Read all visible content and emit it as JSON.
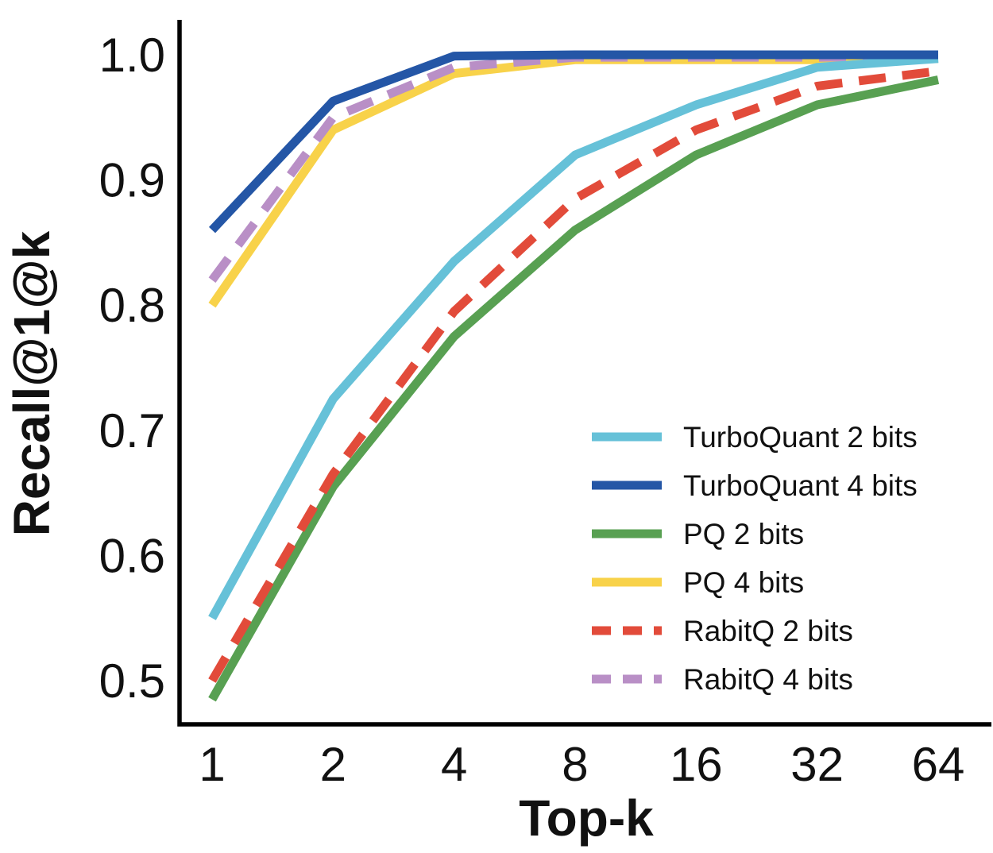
{
  "figure": {
    "kind": "line-chart-figure",
    "background": "#ffffff",
    "text_color": "#111111",
    "axis_color": "#000000"
  },
  "chart_data": {
    "type": "line",
    "title": "",
    "xlabel": "Top-k",
    "ylabel": "Recall@1@k",
    "x_scale": "log2",
    "x": [
      1,
      2,
      4,
      8,
      16,
      32,
      64
    ],
    "xtick_labels": [
      "1",
      "2",
      "4",
      "8",
      "16",
      "32",
      "64"
    ],
    "yticks": [
      0.5,
      0.6,
      0.7,
      0.8,
      0.9,
      1.0
    ],
    "ytick_labels": [
      "0.5",
      "0.6",
      "0.7",
      "0.8",
      "0.9",
      "1.0"
    ],
    "ylim": [
      0.465,
      1.028
    ],
    "xlim": [
      1,
      64
    ],
    "grid": false,
    "legend_position": "lower right",
    "series": [
      {
        "name": "TurboQuant 2 bits",
        "color": "#66c1d8",
        "style": "solid",
        "values": [
          0.55,
          0.725,
          0.835,
          0.92,
          0.96,
          0.99,
          0.997
        ]
      },
      {
        "name": "TurboQuant 4 bits",
        "color": "#2456a6",
        "style": "solid",
        "values": [
          0.86,
          0.963,
          0.999,
          1.0,
          1.0,
          1.0,
          1.0
        ]
      },
      {
        "name": "PQ 2 bits",
        "color": "#58a052",
        "style": "solid",
        "values": [
          0.485,
          0.655,
          0.775,
          0.86,
          0.92,
          0.96,
          0.98
        ]
      },
      {
        "name": "PQ 4 bits",
        "color": "#f8d24a",
        "style": "solid",
        "values": [
          0.8,
          0.94,
          0.985,
          0.996,
          0.996,
          0.996,
          0.997
        ]
      },
      {
        "name": "RabitQ 2 bits",
        "color": "#e24b3a",
        "style": "dashed",
        "values": [
          0.5,
          0.665,
          0.795,
          0.885,
          0.94,
          0.975,
          0.987
        ]
      },
      {
        "name": "RabitQ 4 bits",
        "color": "#b98fc6",
        "style": "dashed",
        "values": [
          0.82,
          0.95,
          0.99,
          0.998,
          0.998,
          0.998,
          0.999
        ]
      }
    ]
  }
}
